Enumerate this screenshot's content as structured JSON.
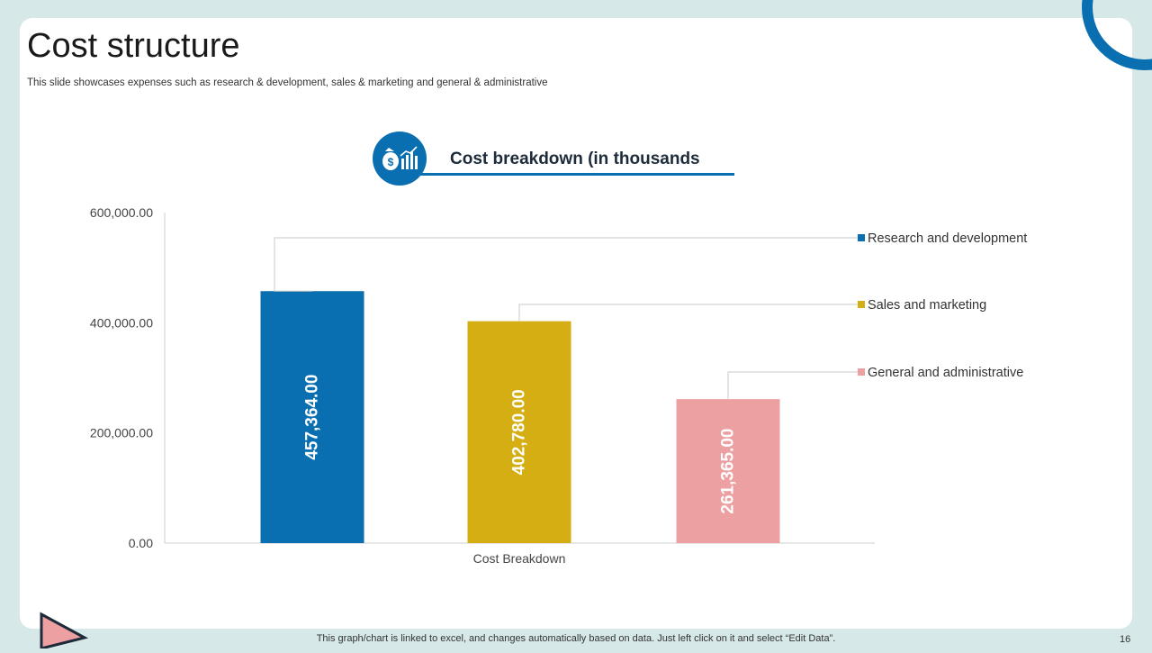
{
  "slide": {
    "title": "Cost structure",
    "subtitle": "This slide showcases expenses such as research & development, sales & marketing and general & administrative",
    "footnote": "This graph/chart is linked to excel,  and changes automatically based on data. Just left click on it and select “Edit Data”.",
    "page_number": "16"
  },
  "icons": {
    "chart_header": "money-bag-chart-icon",
    "corner": "triangle-decoration-icon",
    "ring": "ring-decoration-icon"
  },
  "colors": {
    "accent": "#0a6fb0",
    "research": "#0a6fb0",
    "sales": "#d4ae12",
    "general": "#eda0a1"
  },
  "chart_data": {
    "type": "bar",
    "title": "Cost breakdown (in thousands",
    "categories": [
      "Cost Breakdown"
    ],
    "series": [
      {
        "name": "Research and development",
        "values": [
          457364.0
        ],
        "label": "457,364.00",
        "color": "#0a6fb0"
      },
      {
        "name": "Sales and marketing",
        "values": [
          402780.0
        ],
        "label": "402,780.00",
        "color": "#d4ae12"
      },
      {
        "name": "General and administrative",
        "values": [
          261365.0
        ],
        "label": "261,365.00",
        "color": "#eda0a1"
      }
    ],
    "yticks": [
      "0.00",
      "200,000.00",
      "400,000.00",
      "600,000.00"
    ],
    "ylim": [
      0,
      600000
    ],
    "xlabel": "",
    "ylabel": "",
    "grid": false,
    "legend": "right"
  }
}
